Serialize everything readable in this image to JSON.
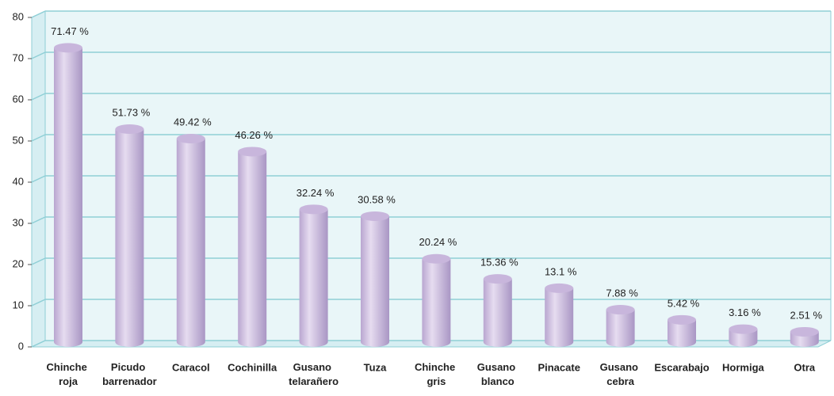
{
  "chart_data": {
    "type": "bar",
    "categories": [
      "Chinche roja",
      "Picudo barrenador",
      "Caracol",
      "Cochinilla",
      "Gusano telarañero",
      "Tuza",
      "Chinche gris",
      "Gusano blanco",
      "Pinacate",
      "Gusano cebra",
      "Escarabajo",
      "Hormiga",
      "Otra"
    ],
    "values": [
      71.47,
      51.73,
      49.42,
      46.26,
      32.24,
      30.58,
      20.24,
      15.36,
      13.1,
      7.88,
      5.42,
      3.16,
      2.51
    ],
    "value_labels": [
      "71.47 %",
      "51.73 %",
      "49.42 %",
      "46.26 %",
      "32.24 %",
      "30.58 %",
      "20.24 %",
      "15.36 %",
      "13.1 %",
      "7.88 %",
      "5.42 %",
      "3.16 %",
      "2.51 %"
    ],
    "color": "#c8b6dc",
    "ylim": [
      0,
      80
    ],
    "yticks": [
      0,
      10,
      20,
      30,
      40,
      50,
      60,
      70,
      80
    ],
    "grid": true
  }
}
